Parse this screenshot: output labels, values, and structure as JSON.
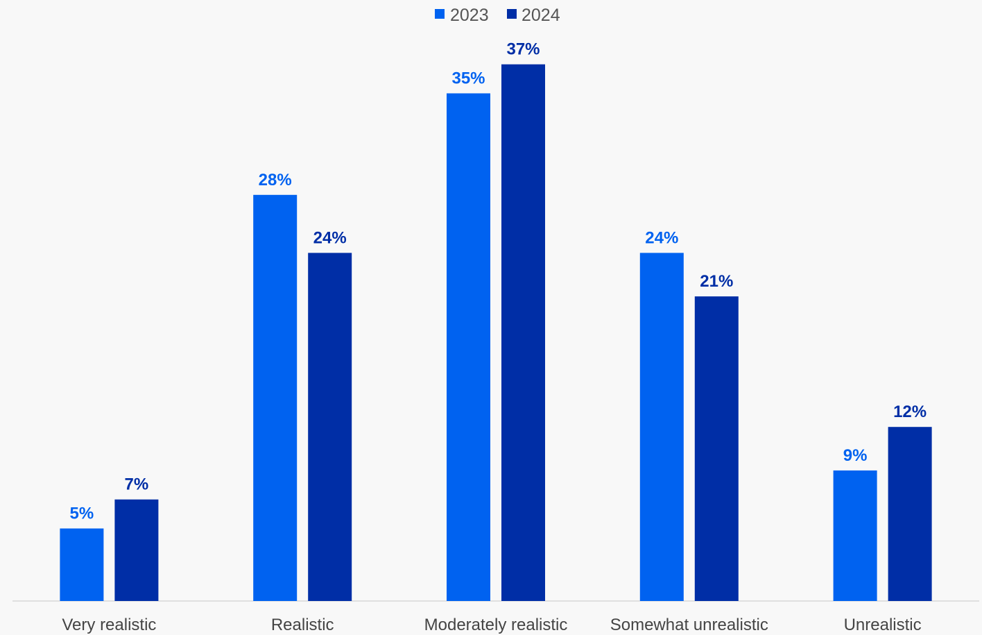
{
  "chart_data": {
    "type": "bar",
    "title": "",
    "xlabel": "",
    "ylabel": "",
    "categories": [
      "Very realistic",
      "Realistic",
      "Moderately realistic",
      "Somewhat unrealistic",
      "Unrealistic"
    ],
    "series": [
      {
        "name": "2023",
        "values": [
          5,
          28,
          35,
          24,
          9
        ],
        "labels": [
          "5%",
          "28%",
          "35%",
          "24%",
          "9%"
        ],
        "color": "#0062f0"
      },
      {
        "name": "2024",
        "values": [
          7,
          24,
          37,
          21,
          12
        ],
        "labels": [
          "7%",
          "24%",
          "37%",
          "21%",
          "12%"
        ],
        "color": "#002ea6"
      }
    ],
    "ylim": [
      0,
      40
    ],
    "grid": false,
    "legend_position": "top-center"
  }
}
